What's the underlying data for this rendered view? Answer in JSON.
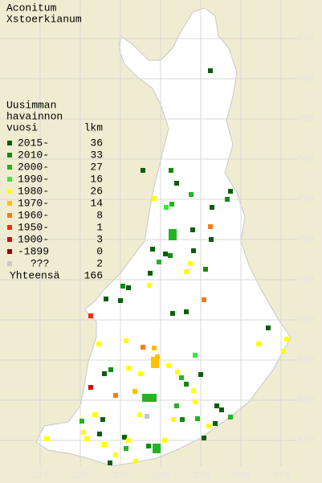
{
  "title": [
    "Aconitum",
    "Xstoerkianum"
  ],
  "legend": {
    "heading": [
      "Uusimman",
      "havainnon",
      "vuosi"
    ],
    "count_heading": "lkm",
    "entries": [
      {
        "label": "2015-",
        "count": 36,
        "color": "#0b5e0b"
      },
      {
        "label": "2010-",
        "count": 33,
        "color": "#138a13"
      },
      {
        "label": "2000-",
        "count": 27,
        "color": "#22b422"
      },
      {
        "label": "1990-",
        "count": 16,
        "color": "#3ae83a"
      },
      {
        "label": "1980-",
        "count": 26,
        "color": "#ffff00"
      },
      {
        "label": "1970-",
        "count": 14,
        "color": "#ffc000"
      },
      {
        "label": "1960-",
        "count": 8,
        "color": "#ff7a1a"
      },
      {
        "label": "1950-",
        "count": 1,
        "color": "#ff2a10"
      },
      {
        "label": "1900-",
        "count": 3,
        "color": "#d01010"
      },
      {
        "label": "-1899",
        "count": 0,
        "color": "#900c0c"
      },
      {
        "label": "???",
        "count": 2,
        "color": "#c8c8c8"
      }
    ],
    "total_label": "Yhteensä",
    "total": 166
  },
  "x_ticks": [
    310,
    320,
    330,
    340,
    350,
    360,
    370
  ],
  "y_ticks": [
    770,
    760,
    750,
    740,
    730,
    720,
    710,
    700,
    690,
    680,
    670
  ]
}
